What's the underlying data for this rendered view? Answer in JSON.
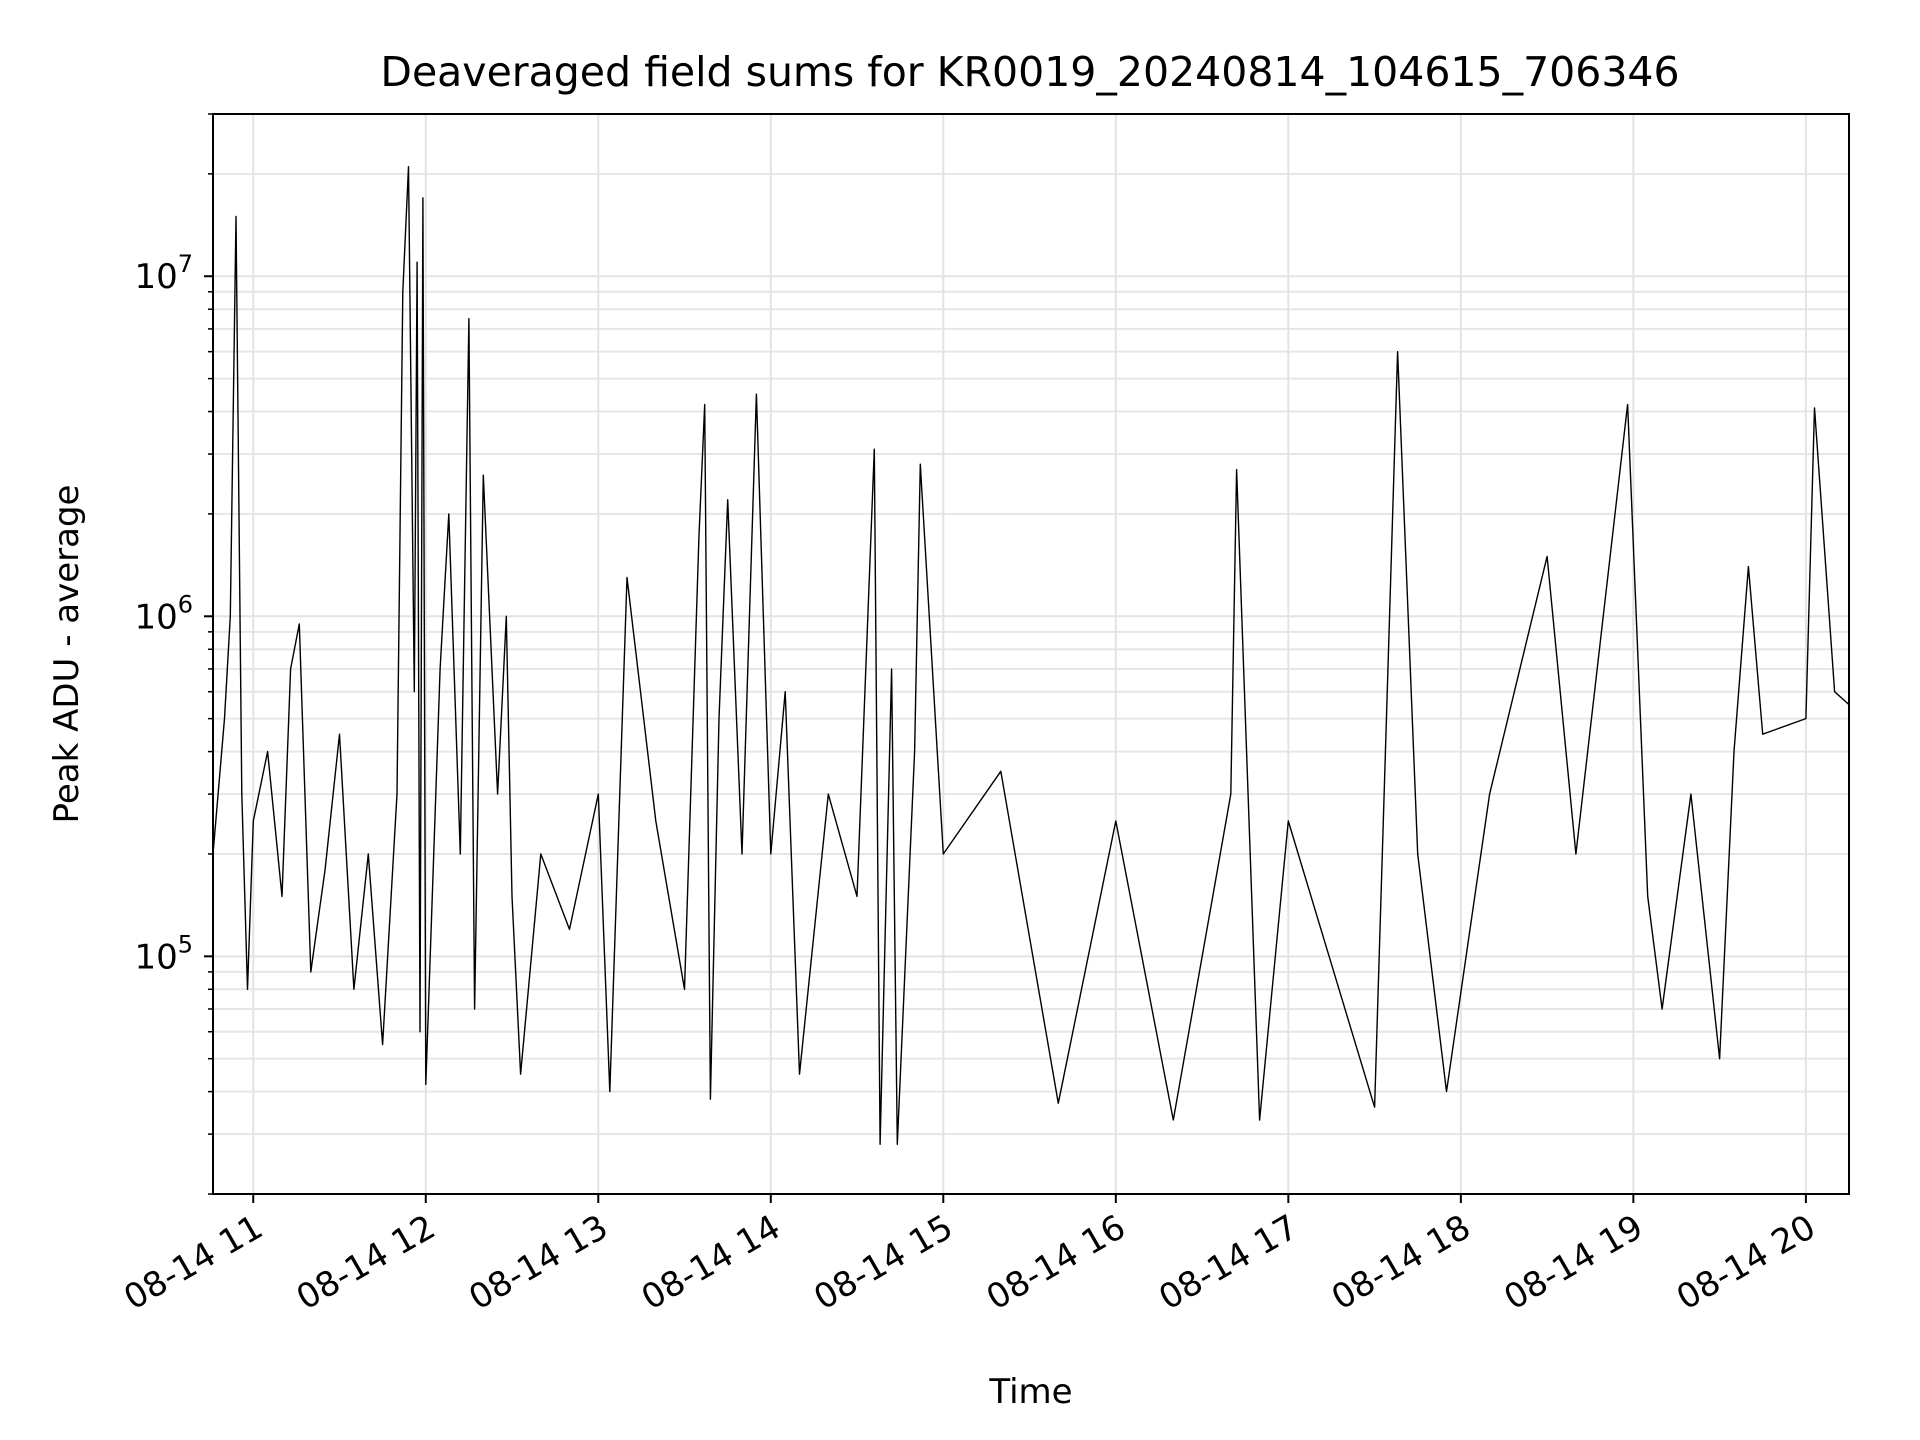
{
  "chart_data": {
    "type": "line",
    "title": "Deaveraged field sums for KR0019_20240814_104615_706346",
    "xlabel": "Time",
    "ylabel": "Peak ADU - average",
    "y_scale": "log",
    "ylim": [
      20000,
      30000000
    ],
    "xlim": [
      "2024-08-14 10:46",
      "2024-08-14 20:15"
    ],
    "grid": true,
    "x_ticks": [
      {
        "t": "2024-08-14 11:00",
        "label": "08-14 11"
      },
      {
        "t": "2024-08-14 12:00",
        "label": "08-14 12"
      },
      {
        "t": "2024-08-14 13:00",
        "label": "08-14 13"
      },
      {
        "t": "2024-08-14 14:00",
        "label": "08-14 14"
      },
      {
        "t": "2024-08-14 15:00",
        "label": "08-14 15"
      },
      {
        "t": "2024-08-14 16:00",
        "label": "08-14 16"
      },
      {
        "t": "2024-08-14 17:00",
        "label": "08-14 17"
      },
      {
        "t": "2024-08-14 18:00",
        "label": "08-14 18"
      },
      {
        "t": "2024-08-14 19:00",
        "label": "08-14 19"
      },
      {
        "t": "2024-08-14 20:00",
        "label": "08-14 20"
      }
    ],
    "y_ticks": [
      {
        "value": 100000,
        "base": "10",
        "exp": "5"
      },
      {
        "value": 1000000,
        "base": "10",
        "exp": "6"
      },
      {
        "value": 10000000,
        "base": "10",
        "exp": "7"
      }
    ],
    "series": [
      {
        "color": "#000000",
        "points": [
          [
            "2024-08-14 10:46",
            200000
          ],
          [
            "2024-08-14 10:50",
            500000
          ],
          [
            "2024-08-14 10:52",
            1000000
          ],
          [
            "2024-08-14 10:54",
            15000000
          ],
          [
            "2024-08-14 10:56",
            300000
          ],
          [
            "2024-08-14 10:58",
            80000
          ],
          [
            "2024-08-14 11:00",
            250000
          ],
          [
            "2024-08-14 11:05",
            400000
          ],
          [
            "2024-08-14 11:10",
            150000
          ],
          [
            "2024-08-14 11:13",
            700000
          ],
          [
            "2024-08-14 11:16",
            950000
          ],
          [
            "2024-08-14 11:20",
            90000
          ],
          [
            "2024-08-14 11:25",
            180000
          ],
          [
            "2024-08-14 11:30",
            450000
          ],
          [
            "2024-08-14 11:35",
            80000
          ],
          [
            "2024-08-14 11:40",
            200000
          ],
          [
            "2024-08-14 11:45",
            55000
          ],
          [
            "2024-08-14 11:50",
            300000
          ],
          [
            "2024-08-14 11:52",
            9000000
          ],
          [
            "2024-08-14 11:54",
            21000000
          ],
          [
            "2024-08-14 11:56",
            600000
          ],
          [
            "2024-08-14 11:57",
            11000000
          ],
          [
            "2024-08-14 11:58",
            60000
          ],
          [
            "2024-08-14 11:59",
            17000000
          ],
          [
            "2024-08-14 12:00",
            42000
          ],
          [
            "2024-08-14 12:05",
            700000
          ],
          [
            "2024-08-14 12:08",
            2000000
          ],
          [
            "2024-08-14 12:12",
            200000
          ],
          [
            "2024-08-14 12:15",
            7500000
          ],
          [
            "2024-08-14 12:17",
            70000
          ],
          [
            "2024-08-14 12:20",
            2600000
          ],
          [
            "2024-08-14 12:25",
            300000
          ],
          [
            "2024-08-14 12:28",
            1000000
          ],
          [
            "2024-08-14 12:30",
            150000
          ],
          [
            "2024-08-14 12:33",
            45000
          ],
          [
            "2024-08-14 12:40",
            200000
          ],
          [
            "2024-08-14 12:50",
            120000
          ],
          [
            "2024-08-14 13:00",
            300000
          ],
          [
            "2024-08-14 13:04",
            40000
          ],
          [
            "2024-08-14 13:10",
            1300000
          ],
          [
            "2024-08-14 13:20",
            250000
          ],
          [
            "2024-08-14 13:30",
            80000
          ],
          [
            "2024-08-14 13:35",
            1700000
          ],
          [
            "2024-08-14 13:37",
            4200000
          ],
          [
            "2024-08-14 13:39",
            38000
          ],
          [
            "2024-08-14 13:42",
            500000
          ],
          [
            "2024-08-14 13:45",
            2200000
          ],
          [
            "2024-08-14 13:50",
            200000
          ],
          [
            "2024-08-14 13:55",
            4500000
          ],
          [
            "2024-08-14 14:00",
            200000
          ],
          [
            "2024-08-14 14:05",
            600000
          ],
          [
            "2024-08-14 14:10",
            45000
          ],
          [
            "2024-08-14 14:20",
            300000
          ],
          [
            "2024-08-14 14:30",
            150000
          ],
          [
            "2024-08-14 14:36",
            3100000
          ],
          [
            "2024-08-14 14:38",
            28000
          ],
          [
            "2024-08-14 14:42",
            700000
          ],
          [
            "2024-08-14 14:44",
            28000
          ],
          [
            "2024-08-14 14:50",
            400000
          ],
          [
            "2024-08-14 14:52",
            2800000
          ],
          [
            "2024-08-14 15:00",
            200000
          ],
          [
            "2024-08-14 15:20",
            350000
          ],
          [
            "2024-08-14 15:40",
            37000
          ],
          [
            "2024-08-14 16:00",
            250000
          ],
          [
            "2024-08-14 16:20",
            33000
          ],
          [
            "2024-08-14 16:40",
            300000
          ],
          [
            "2024-08-14 16:42",
            2700000
          ],
          [
            "2024-08-14 16:50",
            33000
          ],
          [
            "2024-08-14 17:00",
            250000
          ],
          [
            "2024-08-14 17:30",
            36000
          ],
          [
            "2024-08-14 17:38",
            6000000
          ],
          [
            "2024-08-14 17:45",
            200000
          ],
          [
            "2024-08-14 17:55",
            40000
          ],
          [
            "2024-08-14 18:10",
            300000
          ],
          [
            "2024-08-14 18:30",
            1500000
          ],
          [
            "2024-08-14 18:40",
            200000
          ],
          [
            "2024-08-14 18:58",
            4200000
          ],
          [
            "2024-08-14 19:05",
            150000
          ],
          [
            "2024-08-14 19:10",
            70000
          ],
          [
            "2024-08-14 19:20",
            300000
          ],
          [
            "2024-08-14 19:30",
            50000
          ],
          [
            "2024-08-14 19:35",
            400000
          ],
          [
            "2024-08-14 19:40",
            1400000
          ],
          [
            "2024-08-14 19:45",
            450000
          ],
          [
            "2024-08-14 20:00",
            500000
          ],
          [
            "2024-08-14 20:03",
            4100000
          ],
          [
            "2024-08-14 20:10",
            600000
          ],
          [
            "2024-08-14 20:15",
            550000
          ]
        ]
      }
    ]
  }
}
